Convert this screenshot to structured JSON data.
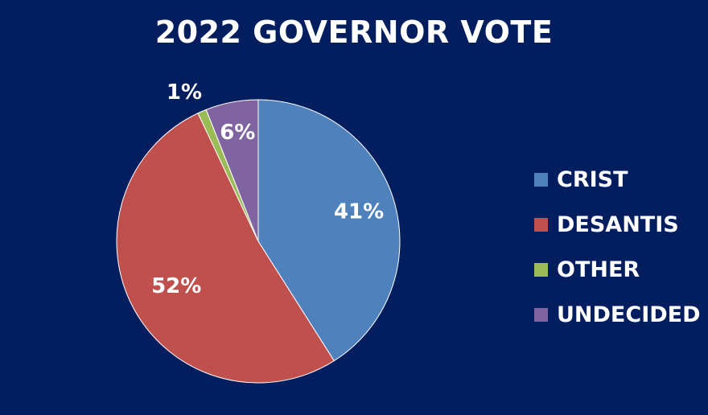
{
  "chart_data": {
    "type": "pie",
    "title": "2022 GOVERNOR VOTE",
    "categories": [
      "CRIST",
      "DESANTIS",
      "OTHER",
      "UNDECIDED"
    ],
    "values": [
      41,
      52,
      1,
      6
    ],
    "value_labels": [
      "41%",
      "52%",
      "1%",
      "6%"
    ],
    "colors": [
      "#4F81BD",
      "#C0504D",
      "#9BBB59",
      "#8064A2"
    ],
    "legend": "right"
  },
  "colors": {
    "background": "#021E5F",
    "text": "#FFFFFF",
    "slice_border": "#FFFFFF"
  }
}
